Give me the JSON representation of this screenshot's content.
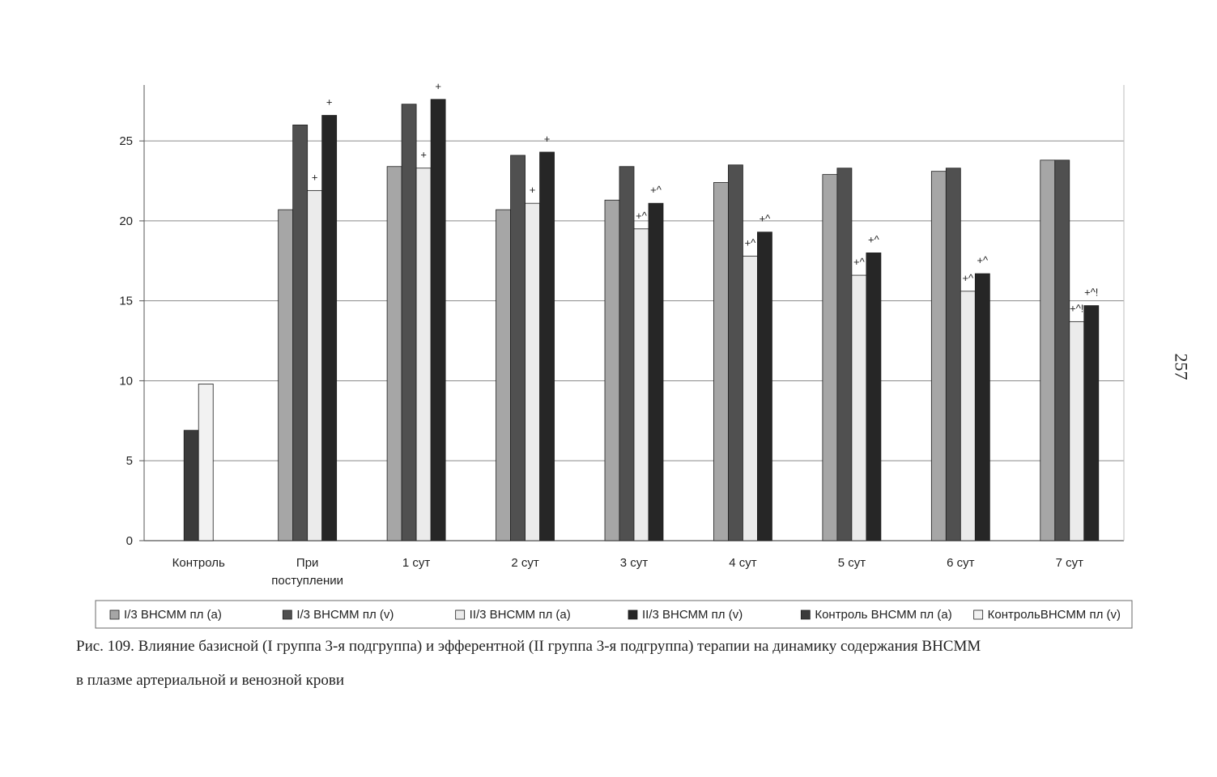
{
  "page_number": "257",
  "caption": {
    "line1": "Рис. 109. Влияние базисной (I группа 3-я подгруппа) и эфферентной (II группа 3-я подгруппа) терапии на динамику содержания ВНСММ",
    "line2": "в плазме артериальной и венозной крови"
  },
  "chart_data": {
    "type": "bar",
    "title": "",
    "xlabel": "",
    "ylabel": "",
    "ylim": [
      0,
      28.5
    ],
    "yticks": [
      0,
      5,
      10,
      15,
      20,
      25
    ],
    "grid": true,
    "legend_position": "bottom",
    "categories": [
      "Контроль",
      "При поступлении",
      "1 сут",
      "2 сут",
      "3 сут",
      "4 сут",
      "5 сут",
      "6 сут",
      "7 сут"
    ],
    "series": [
      {
        "name": "I/3 ВНСММ пл (a)",
        "color": "#a6a6a6",
        "values": [
          null,
          20.7,
          23.4,
          20.7,
          21.3,
          22.4,
          22.9,
          23.1,
          23.8
        ]
      },
      {
        "name": "I/3 ВНСММ пл (v)",
        "color": "#505050",
        "values": [
          null,
          26.0,
          27.3,
          24.1,
          23.4,
          23.5,
          23.3,
          23.3,
          23.8
        ]
      },
      {
        "name": "II/3 ВНСММ пл (a)",
        "color": "#ebebeb",
        "values": [
          null,
          21.9,
          23.3,
          21.1,
          19.5,
          17.8,
          16.6,
          15.6,
          13.7
        ]
      },
      {
        "name": "II/3 ВНСММ пл (v)",
        "color": "#262626",
        "values": [
          null,
          26.6,
          27.6,
          24.3,
          21.1,
          19.3,
          18.0,
          16.7,
          14.7
        ]
      },
      {
        "name": "Контроль ВНСММ пл (a)",
        "color": "#3a3a3a",
        "values": [
          6.9,
          null,
          null,
          null,
          null,
          null,
          null,
          null,
          null
        ]
      },
      {
        "name": "КонтрольВНСММ пл (v)",
        "color": "#f2f2f2",
        "values": [
          9.8,
          null,
          null,
          null,
          null,
          null,
          null,
          null,
          null
        ]
      }
    ],
    "annotations": [
      {
        "category": "При поступлении",
        "series": "II/3 ВНСММ пл (a)",
        "text": "+"
      },
      {
        "category": "При поступлении",
        "series": "II/3 ВНСММ пл (v)",
        "text": "+"
      },
      {
        "category": "1 сут",
        "series": "II/3 ВНСММ пл (a)",
        "text": "+"
      },
      {
        "category": "1 сут",
        "series": "II/3 ВНСММ пл (v)",
        "text": "+"
      },
      {
        "category": "2 сут",
        "series": "II/3 ВНСММ пл (a)",
        "text": "+"
      },
      {
        "category": "2 сут",
        "series": "II/3 ВНСММ пл (v)",
        "text": "+"
      },
      {
        "category": "3 сут",
        "series": "II/3 ВНСММ пл (a)",
        "text": "+^"
      },
      {
        "category": "3 сут",
        "series": "II/3 ВНСММ пл (v)",
        "text": "+^"
      },
      {
        "category": "4 сут",
        "series": "II/3 ВНСММ пл (a)",
        "text": "+^"
      },
      {
        "category": "4 сут",
        "series": "II/3 ВНСММ пл (v)",
        "text": "+^"
      },
      {
        "category": "5 сут",
        "series": "II/3 ВНСММ пл (a)",
        "text": "+^"
      },
      {
        "category": "5 сут",
        "series": "II/3 ВНСММ пл (v)",
        "text": "+^"
      },
      {
        "category": "6 сут",
        "series": "II/3 ВНСММ пл (a)",
        "text": "+^"
      },
      {
        "category": "6 сут",
        "series": "II/3 ВНСММ пл (v)",
        "text": "+^"
      },
      {
        "category": "7 сут",
        "series": "II/3 ВНСММ пл (a)",
        "text": "+^!"
      },
      {
        "category": "7 сут",
        "series": "II/3 ВНСММ пл (v)",
        "text": "+^!"
      }
    ]
  }
}
